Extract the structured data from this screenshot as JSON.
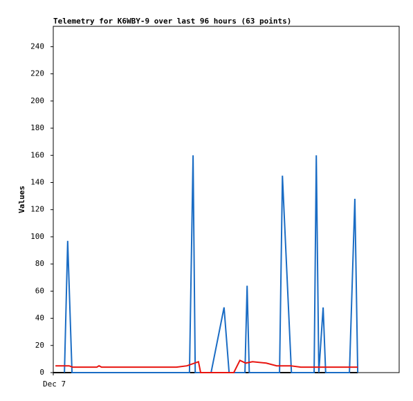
{
  "chart_data": {
    "type": "line",
    "title": "Telemetry for K6WBY-9 over last 96 hours (63 points)",
    "y_label": "Values",
    "xlim": [
      0,
      96
    ],
    "xticks": [
      {
        "value": 0,
        "label": "Dec 7"
      }
    ],
    "ylim": [
      0,
      255
    ],
    "yticks": [
      0,
      20,
      40,
      60,
      80,
      100,
      120,
      140,
      160,
      180,
      200,
      220,
      240
    ],
    "series": [
      {
        "color": "#000000",
        "x": [
          0,
          84.5
        ],
        "values": [
          0,
          0
        ]
      },
      {
        "color": "#1a6cc4",
        "x": [
          3.1,
          4.0,
          5.2,
          37.8,
          38.8,
          39.4,
          43.8,
          47.4,
          48.8,
          53.2,
          53.8,
          54.4,
          62.8,
          63.6,
          66.1,
          72.4,
          73.0,
          73.7,
          74.9,
          75.6,
          82.2,
          83.7,
          84.5
        ],
        "values": [
          0,
          97,
          0,
          0,
          160,
          0,
          0,
          48,
          0,
          0,
          64,
          0,
          0,
          145,
          0,
          0,
          160,
          0,
          48,
          0,
          0,
          128,
          0
        ]
      },
      {
        "color": "#e8140f",
        "x": [
          0.6,
          4.4,
          5.4,
          12.1,
          12.7,
          13.4,
          34.2,
          37.1,
          40.3,
          40.9,
          50.1,
          51.8,
          53.4,
          55.3,
          59.1,
          62.0,
          65.9,
          68.7,
          84.5
        ],
        "values": [
          5,
          5,
          4,
          4,
          5,
          4,
          4,
          5,
          8,
          0,
          0,
          9,
          7,
          8,
          7,
          5,
          5,
          4,
          4
        ]
      }
    ]
  }
}
